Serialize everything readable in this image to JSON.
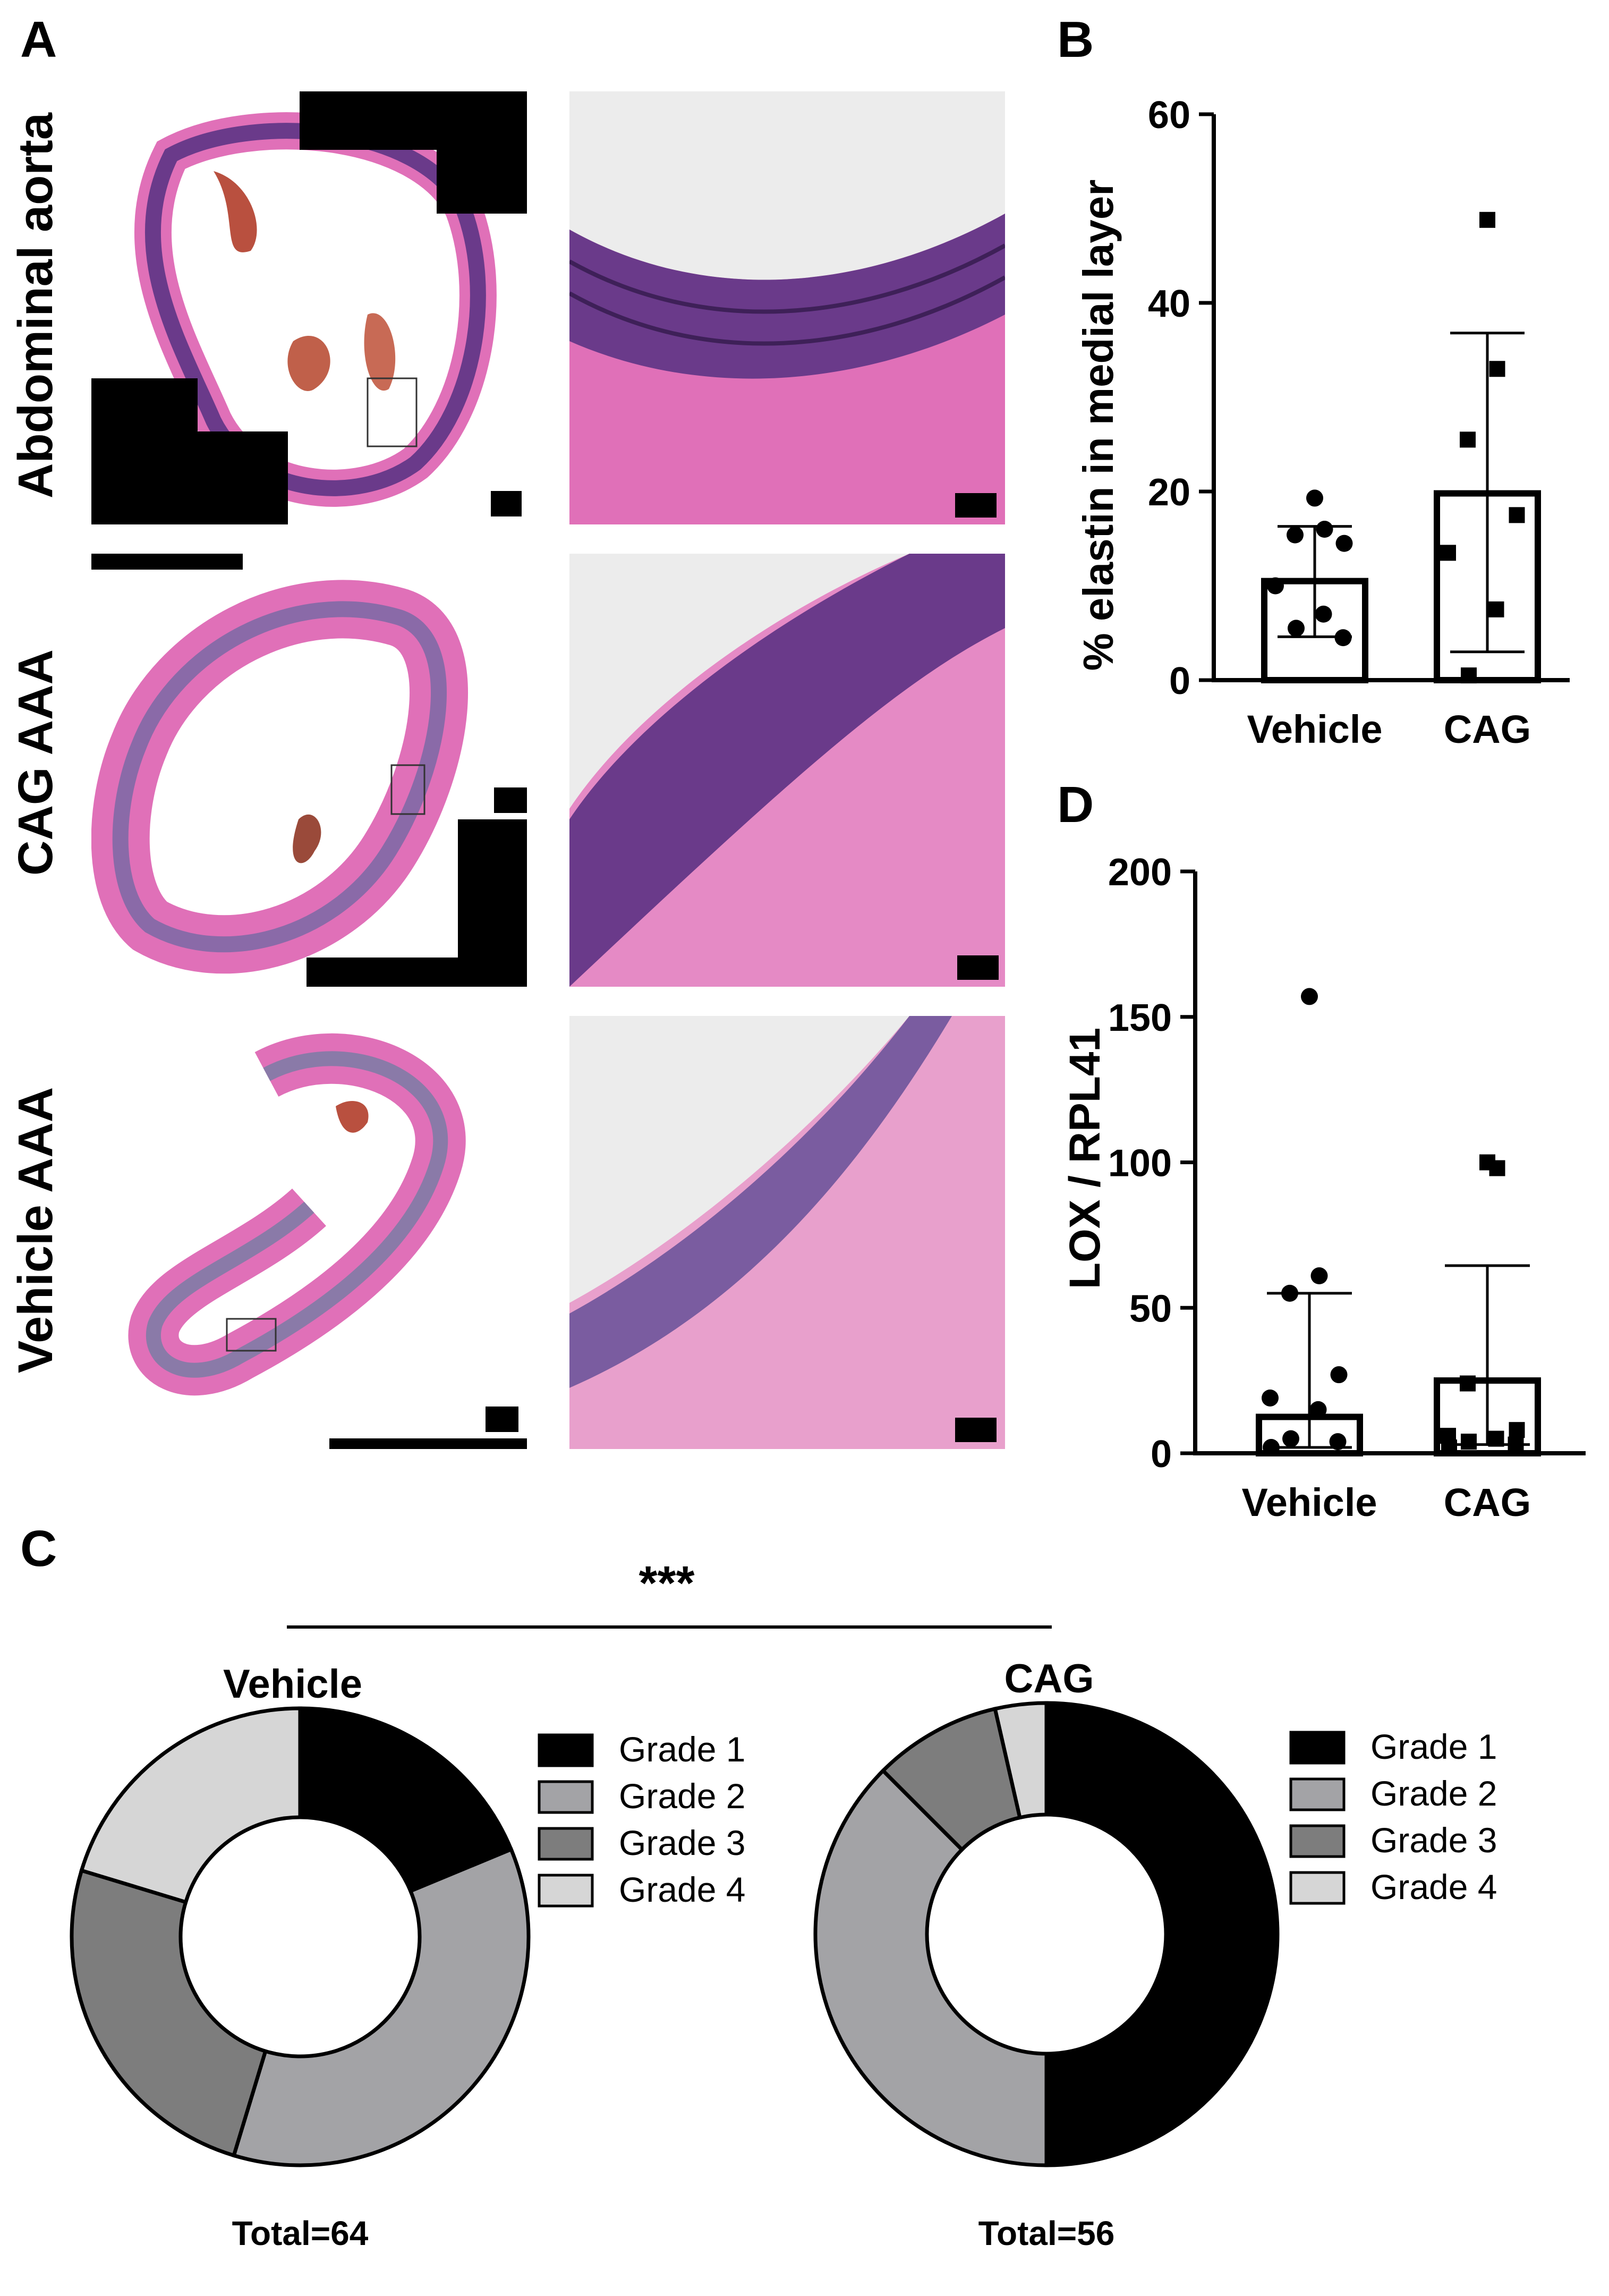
{
  "panels": {
    "A": {
      "letter": "A",
      "rows": [
        "Abdominal aorta",
        "CAG AAA",
        "Vehicle AAA"
      ]
    },
    "B": {
      "letter": "B"
    },
    "C": {
      "letter": "C"
    },
    "D": {
      "letter": "D"
    }
  },
  "colors": {
    "grade1": "#000000",
    "grade2": "#a3a3a6",
    "grade3": "#7d7d7d",
    "grade4": "#d6d6d6",
    "stain_pink": "#e070b8",
    "stain_purple": "#6a3a8a",
    "stain_bg": "#ececec"
  },
  "chart_data": [
    {
      "id": "B",
      "type": "bar",
      "ylabel": "% elastin in medial layer",
      "ylim": [
        0,
        60
      ],
      "yticks": [
        "0",
        "20",
        "40",
        "60"
      ],
      "categories": [
        "Vehicle",
        "CAG"
      ],
      "values": [
        10.5,
        19.8
      ],
      "error_upper": [
        16.3,
        36.8
      ],
      "error_lower": [
        4.6,
        3.0
      ],
      "points": [
        [
          19.3,
          16.0,
          15.4,
          14.5,
          10.0,
          7.0,
          5.5,
          4.5
        ],
        [
          48.8,
          33.0,
          25.5,
          17.5,
          13.5,
          7.5,
          0.5
        ]
      ],
      "markers": [
        "circle",
        "square"
      ]
    },
    {
      "id": "D",
      "type": "bar",
      "ylabel": "LOX / RPL41",
      "ylim": [
        0,
        200
      ],
      "yticks": [
        "0",
        "50",
        "100",
        "150",
        "200"
      ],
      "categories": [
        "Vehicle",
        "CAG"
      ],
      "values": [
        12.5,
        25.0
      ],
      "error_upper": [
        55.0,
        64.5
      ],
      "error_lower": [
        2.0,
        3.0
      ],
      "points": [
        [
          157,
          61,
          55,
          27,
          19,
          15,
          5,
          4,
          2
        ],
        [
          100,
          98,
          24,
          8,
          6,
          5,
          4,
          3,
          2
        ]
      ],
      "markers": [
        "circle",
        "square"
      ]
    },
    {
      "id": "C-vehicle",
      "type": "pie",
      "title": "Vehicle",
      "total_label": "Total=64",
      "labels": [
        "Grade 1",
        "Grade 2",
        "Grade 3",
        "Grade 4"
      ],
      "values": [
        12,
        23,
        16,
        13
      ]
    },
    {
      "id": "C-cag",
      "type": "pie",
      "title": "CAG",
      "total_label": "Total=56",
      "labels": [
        "Grade 1",
        "Grade 2",
        "Grade 3",
        "Grade 4"
      ],
      "values": [
        28,
        21,
        5,
        2
      ]
    }
  ],
  "significance": "***"
}
